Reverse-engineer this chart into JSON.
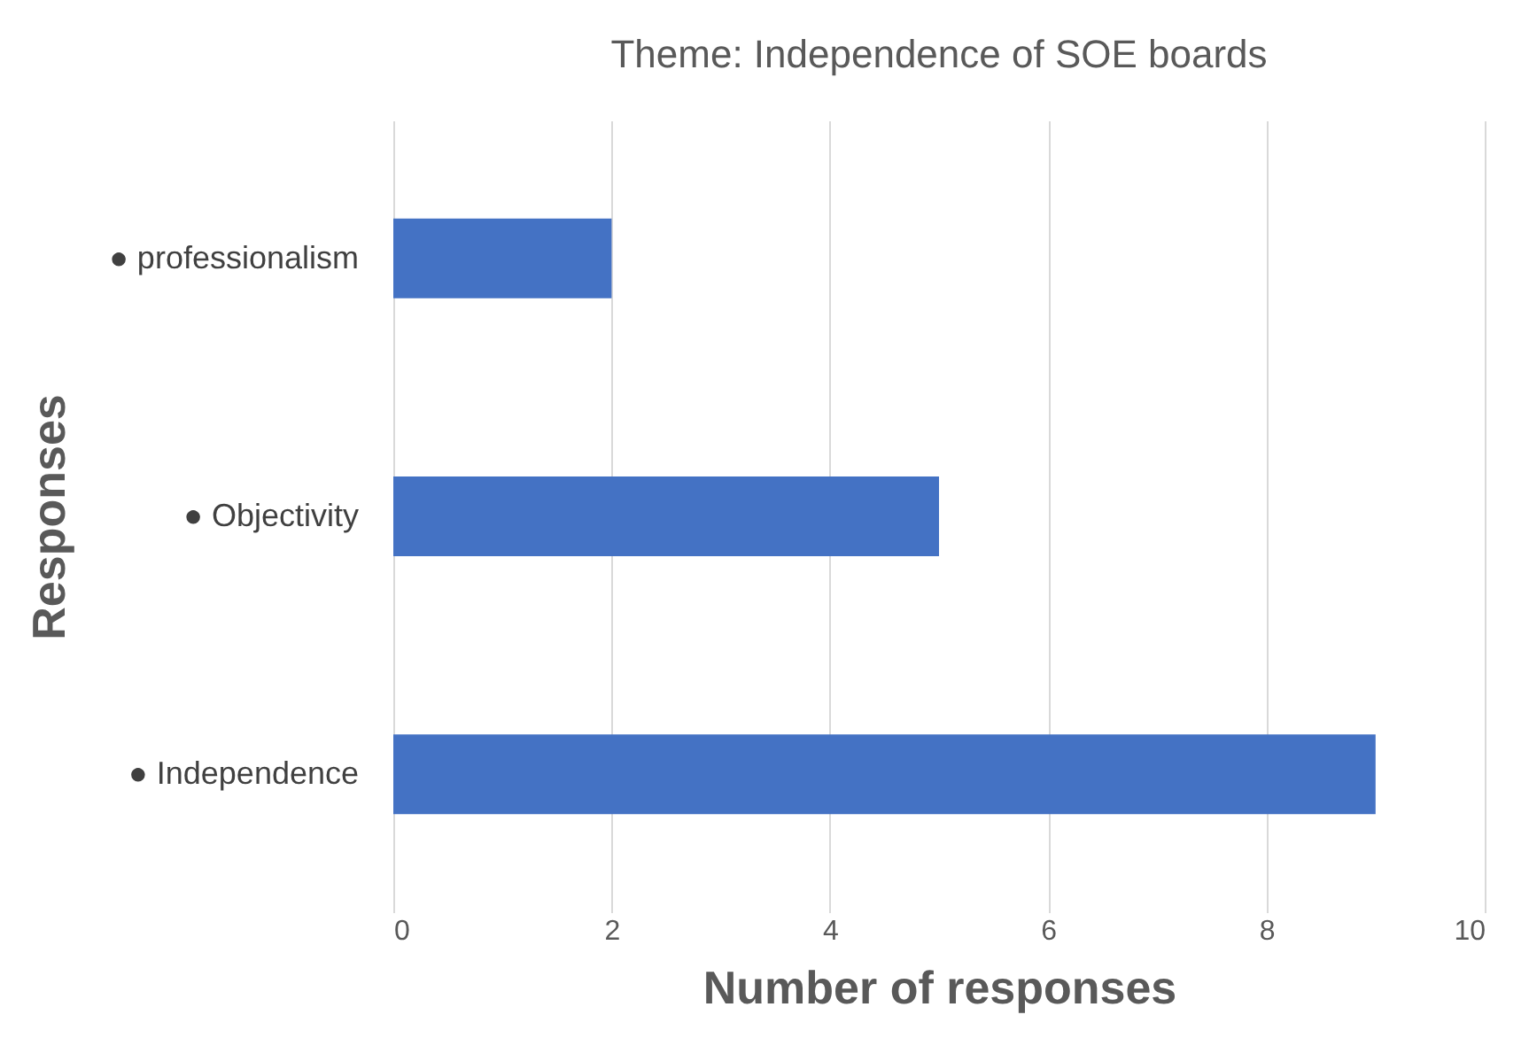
{
  "chart_data": {
    "type": "bar",
    "orientation": "horizontal",
    "title": "Theme: Independence of SOE boards",
    "categories": [
      "● professionalism",
      "● Objectivity",
      "● Independence"
    ],
    "values": [
      2,
      5,
      9
    ],
    "color": "#4472c4",
    "xlim": [
      0,
      10
    ],
    "xticks": [
      0,
      2,
      4,
      6,
      8,
      10
    ],
    "grid": "x",
    "xlabel": "Number of responses",
    "ylabel": "Responses"
  }
}
